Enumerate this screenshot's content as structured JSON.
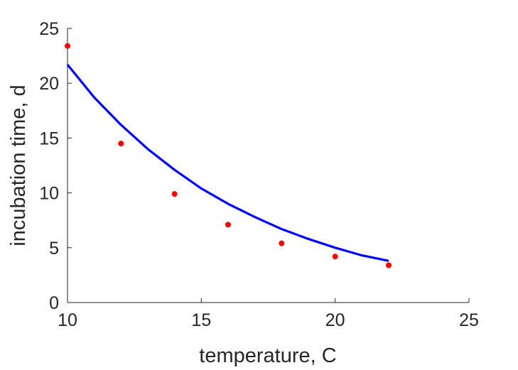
{
  "chart_data": {
    "type": "scatter",
    "title": "",
    "xlabel": "temperature, C",
    "ylabel": "incubation time, d",
    "xlim": [
      10,
      25
    ],
    "ylim": [
      0,
      25
    ],
    "xticks": [
      10,
      15,
      20,
      25
    ],
    "yticks": [
      0,
      5,
      10,
      15,
      20,
      25
    ],
    "grid": false,
    "series": [
      {
        "kind": "scatter",
        "color": "#ff0000",
        "x": [
          10,
          12,
          14,
          16,
          18,
          20,
          22
        ],
        "y": [
          23.4,
          14.5,
          9.9,
          7.1,
          5.4,
          4.2,
          3.4
        ]
      },
      {
        "kind": "line",
        "color": "#0000ff",
        "x": [
          10,
          11,
          12,
          13,
          14,
          15,
          16,
          17,
          18,
          19,
          20,
          21,
          22
        ],
        "y": [
          21.7,
          18.7,
          16.2,
          14.0,
          12.1,
          10.4,
          9.0,
          7.8,
          6.7,
          5.8,
          5.0,
          4.3,
          3.8
        ]
      }
    ]
  }
}
